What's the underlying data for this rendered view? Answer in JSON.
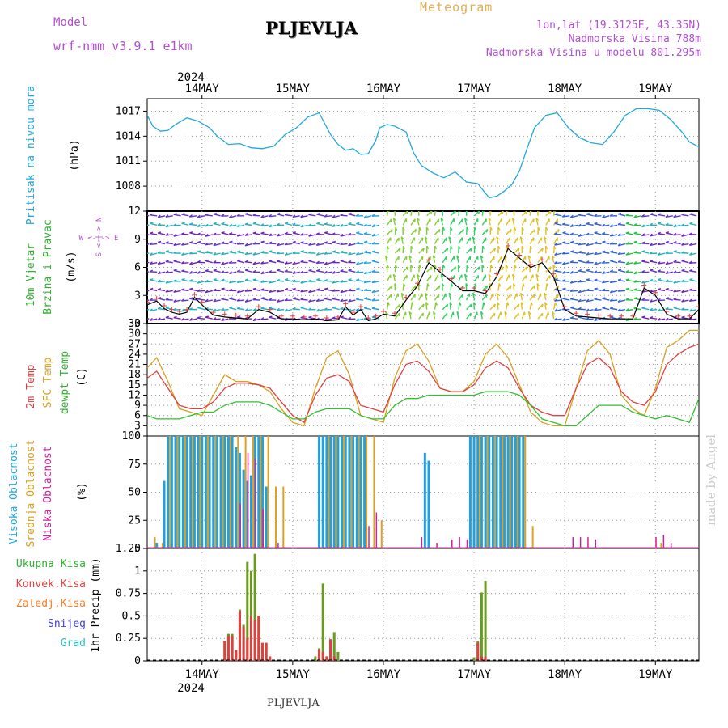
{
  "header": {
    "model_label": "Model",
    "model_name": "wrf-nmm_v3.9.1  e1km",
    "city": "PLJEVLJA",
    "product": "Meteogram",
    "coords": "lon,lat (19.3125E, 43.35N)",
    "elevation": "Nadmorska Visina 788m",
    "model_elevation": "Nadmorska Visina u modelu 801.295m"
  },
  "footer": {
    "city": "PLJEVLJA",
    "watermark": "made by Angel"
  },
  "time_axis": {
    "year": "2024",
    "days": [
      "14MAY",
      "15MAY",
      "16MAY",
      "17MAY",
      "18MAY",
      "19MAY"
    ],
    "day_start_hours": [
      0,
      24,
      48,
      72,
      96,
      120
    ],
    "range_hours": [
      -14.5,
      131.5
    ]
  },
  "panels": {
    "pressure": {
      "title": "Pritisak na nivou mora",
      "unit": "(hPa)",
      "color_title": "#20a8e0"
    },
    "wind": {
      "title1": "10m Vjetar",
      "title2": "Brzina i Pravac",
      "unit": "(m/s)",
      "compass": "W <-|-> E",
      "compass_v": "S <-|-> N"
    },
    "temp": {
      "t2": "2m Temp",
      "sfc": "SFC Temp",
      "dew": "dewpt Temp",
      "unit": "(C)"
    },
    "cloud": {
      "high": "Visoka Oblacnost",
      "mid": "Srednja Oblacnost",
      "low": "Niska Oblacnost",
      "unit": "(%)"
    },
    "precip": {
      "total": "Ukupna Kisa",
      "conv": "Konvek.Kisa",
      "frozen": "Zaledj.Kisa",
      "snow": "Snijeg",
      "hail": "Grad",
      "unit": "1hr Precip (mm)"
    }
  },
  "colors": {
    "pressure": "#20a8e0",
    "t2": "#e04040",
    "sfc": "#d8a020",
    "dew": "#30c030",
    "cloud_high": "#20a0e0",
    "cloud_mid": "#e0a020",
    "cloud_low": "#d020a0",
    "precip_total": "#6a9a20",
    "precip_conv": "#e04040",
    "legend_total": "#30b030",
    "legend_frozen": "#f08030",
    "legend_snow": "#4040e0",
    "legend_hail": "#20c0c0"
  },
  "chart_data": [
    {
      "type": "line",
      "title": "Pritisak na nivou mora",
      "ylabel": "(hPa)",
      "ylim": [
        1005,
        1018.5
      ],
      "yticks": [
        1008,
        1011,
        1014,
        1017
      ],
      "series": [
        {
          "name": "Pritisak na nivou mora",
          "x": [
            -14.5,
            -13,
            -11,
            -9,
            -7,
            -4,
            -1,
            2,
            4,
            7,
            10,
            13,
            16,
            19,
            22,
            25,
            28,
            31,
            34,
            36,
            38,
            40,
            42,
            44,
            46,
            47,
            49,
            51,
            54,
            56,
            58,
            61,
            64,
            67,
            70,
            73,
            76,
            78,
            80,
            82,
            84,
            86,
            88,
            91,
            94,
            97,
            100,
            103,
            106,
            109,
            112,
            115,
            118,
            121,
            124,
            127,
            129,
            131.5
          ],
          "y": [
            1016.5,
            1015.2,
            1014.6,
            1014.7,
            1015.4,
            1016.2,
            1015.8,
            1015.0,
            1014.0,
            1013.0,
            1013.1,
            1012.6,
            1012.5,
            1012.8,
            1014.2,
            1015.0,
            1016.3,
            1016.8,
            1014.2,
            1013.0,
            1012.3,
            1012.5,
            1011.8,
            1011.9,
            1013.5,
            1015.0,
            1015.4,
            1015.2,
            1014.5,
            1012.0,
            1010.5,
            1009.6,
            1009.0,
            1009.7,
            1008.5,
            1008.3,
            1006.6,
            1006.8,
            1007.4,
            1008.2,
            1009.8,
            1012.5,
            1015.0,
            1016.5,
            1016.8,
            1015.0,
            1013.8,
            1013.2,
            1013.0,
            1014.5,
            1016.5,
            1017.3,
            1017.3,
            1017.1,
            1016.0,
            1014.5,
            1013.3,
            1012.7
          ]
        }
      ]
    },
    {
      "type": "line",
      "title": "10m Vjetar Brzina i Pravac",
      "ylabel": "(m/s)",
      "ylim": [
        0,
        12
      ],
      "yticks": [
        0,
        3,
        6,
        9,
        12
      ],
      "series": [
        {
          "name": "10m Vjetar",
          "x": [
            -14.5,
            -12,
            -10,
            -8,
            -6,
            -4,
            -2,
            0,
            3,
            6,
            9,
            12,
            15,
            18,
            21,
            24,
            27,
            30,
            33,
            36,
            38,
            40,
            42,
            44,
            46,
            48,
            51,
            54,
            57,
            60,
            63,
            66,
            69,
            72,
            75,
            78,
            81,
            84,
            87,
            90,
            93,
            96,
            99,
            102,
            105,
            108,
            111,
            114,
            117,
            120,
            123,
            126,
            129,
            131.5
          ],
          "y": [
            2.0,
            2.4,
            1.6,
            1.2,
            1.0,
            1.2,
            2.8,
            2.0,
            0.9,
            0.7,
            0.6,
            0.5,
            1.5,
            1.2,
            0.5,
            0.5,
            0.4,
            0.5,
            0.3,
            0.4,
            1.8,
            0.9,
            1.5,
            0.3,
            0.5,
            1.0,
            0.8,
            2.5,
            4.0,
            6.5,
            5.5,
            4.5,
            3.5,
            3.5,
            3.2,
            5.0,
            8.0,
            7.0,
            6.0,
            6.5,
            5.0,
            1.5,
            0.8,
            0.7,
            0.6,
            0.5,
            0.5,
            0.5,
            3.8,
            3.0,
            1.0,
            0.5,
            0.5,
            1.5
          ]
        }
      ]
    },
    {
      "type": "line",
      "title": "2m Temp / SFC Temp / dewpt Temp",
      "ylabel": "(C)",
      "ylim": [
        0,
        33
      ],
      "yticks": [
        0,
        3,
        6,
        9,
        12,
        15,
        18,
        21,
        24,
        27,
        30,
        33
      ],
      "series": [
        {
          "name": "2m Temp",
          "x": [
            -14.5,
            -12,
            -9,
            -6,
            -3,
            0,
            3,
            6,
            9,
            12,
            15,
            18,
            21,
            24,
            27,
            30,
            33,
            36,
            39,
            42,
            45,
            48,
            51,
            54,
            57,
            60,
            63,
            66,
            69,
            72,
            75,
            78,
            81,
            84,
            87,
            90,
            93,
            96,
            99,
            102,
            105,
            108,
            111,
            114,
            117,
            120,
            123,
            126,
            129,
            131.5
          ],
          "y": [
            17,
            19,
            14,
            9,
            8,
            8,
            10,
            14,
            15.5,
            15.5,
            15,
            14,
            10,
            6,
            4,
            12,
            17,
            18,
            16,
            9,
            8,
            7,
            15,
            21,
            22,
            19,
            14,
            13,
            13,
            15,
            20,
            22,
            20,
            14,
            9,
            7,
            6,
            6,
            14,
            21,
            23,
            20,
            13,
            10,
            9,
            13,
            21,
            24,
            26,
            27
          ]
        },
        {
          "name": "SFC Temp",
          "x": [
            -14.5,
            -12,
            -9,
            -6,
            -3,
            0,
            3,
            6,
            9,
            12,
            15,
            18,
            21,
            24,
            27,
            30,
            33,
            36,
            39,
            42,
            45,
            48,
            51,
            54,
            57,
            60,
            63,
            66,
            69,
            72,
            75,
            78,
            81,
            84,
            87,
            90,
            93,
            96,
            99,
            102,
            105,
            108,
            111,
            114,
            117,
            120,
            123,
            126,
            129,
            131.5
          ],
          "y": [
            20,
            23,
            16,
            8,
            7,
            6,
            12,
            18,
            16,
            16,
            15,
            13,
            8,
            4,
            3,
            14,
            23,
            25,
            18,
            6,
            5,
            4,
            17,
            25,
            27,
            22,
            14,
            13,
            13,
            16,
            24,
            27,
            23,
            15,
            7,
            4,
            3,
            3,
            14,
            25,
            28,
            24,
            12,
            8,
            6,
            14,
            26,
            28,
            31,
            31
          ]
        },
        {
          "name": "dewpt Temp",
          "x": [
            -14.5,
            -12,
            -9,
            -6,
            -3,
            0,
            3,
            6,
            9,
            12,
            15,
            18,
            21,
            24,
            27,
            30,
            33,
            36,
            39,
            42,
            45,
            48,
            51,
            54,
            57,
            60,
            63,
            66,
            69,
            72,
            75,
            78,
            81,
            84,
            87,
            90,
            93,
            96,
            99,
            102,
            105,
            108,
            111,
            114,
            117,
            120,
            123,
            126,
            129,
            131.5
          ],
          "y": [
            6,
            5,
            5,
            5,
            6,
            7,
            7,
            9,
            10,
            10,
            10,
            9,
            7,
            5,
            5,
            7,
            8,
            8,
            8,
            6,
            5,
            5,
            9,
            11,
            11,
            12,
            12,
            12,
            12,
            12,
            13,
            13,
            13,
            12,
            9,
            5,
            4,
            3,
            3,
            6,
            9,
            9,
            9,
            7,
            6,
            5,
            6,
            5,
            4,
            11
          ]
        }
      ]
    },
    {
      "type": "bar",
      "title": "Visoka / Srednja / Niska Oblacnost",
      "ylabel": "(%)",
      "ylim": [
        0,
        100
      ],
      "yticks": [
        0,
        25,
        50,
        75,
        100
      ],
      "series": [
        {
          "name": "Visoka Oblacnost",
          "x": [
            -12,
            -10,
            -9,
            -8,
            -7,
            -6,
            -5,
            -4,
            -3,
            -2,
            -1,
            0,
            1,
            2,
            3,
            4,
            5,
            6,
            7,
            8,
            9,
            10,
            11,
            12,
            13,
            14,
            15,
            16,
            17,
            18,
            31,
            32,
            33,
            34,
            35,
            36,
            37,
            38,
            39,
            40,
            41,
            42,
            43,
            44,
            59,
            60,
            61,
            62,
            63,
            71,
            72,
            73,
            74,
            75,
            76,
            77,
            78,
            79,
            80,
            81,
            82,
            83,
            84,
            85
          ],
          "y": [
            5,
            60,
            100,
            100,
            100,
            100,
            100,
            100,
            100,
            100,
            100,
            100,
            100,
            100,
            100,
            100,
            100,
            100,
            100,
            100,
            90,
            85,
            70,
            60,
            65,
            100,
            100,
            100,
            55,
            0,
            100,
            100,
            100,
            100,
            100,
            100,
            100,
            100,
            100,
            100,
            100,
            100,
            100,
            0,
            85,
            78,
            0,
            0,
            0,
            100,
            100,
            100,
            100,
            100,
            100,
            100,
            100,
            100,
            100,
            100,
            100,
            100,
            100,
            100
          ]
        },
        {
          "name": "Srednja Oblacnost",
          "x": [
            -13,
            -11,
            -9,
            -7,
            -5,
            -3,
            -1,
            1,
            3,
            5,
            7,
            9,
            11,
            13,
            15,
            17,
            19,
            21,
            33,
            35,
            37,
            39,
            41,
            43,
            45,
            47,
            73,
            75,
            77,
            79,
            81,
            83,
            85,
            87,
            121
          ],
          "y": [
            10,
            5,
            100,
            100,
            100,
            100,
            100,
            100,
            100,
            100,
            100,
            100,
            100,
            100,
            100,
            100,
            55,
            55,
            100,
            100,
            100,
            100,
            100,
            100,
            100,
            25,
            100,
            100,
            100,
            100,
            100,
            100,
            100,
            20,
            5
          ]
        },
        {
          "name": "Niska Oblacnost",
          "x": [
            10,
            12,
            14,
            16,
            20,
            44,
            46,
            58,
            62,
            66,
            68,
            70,
            98,
            100,
            102,
            104,
            120,
            122,
            124
          ],
          "y": [
            40,
            85,
            80,
            35,
            5,
            20,
            32,
            10,
            5,
            8,
            10,
            8,
            10,
            10,
            10,
            8,
            10,
            12,
            5
          ]
        }
      ]
    },
    {
      "type": "bar",
      "title": "1hr Precip",
      "ylabel": "1hr Precip (mm)",
      "ylim": [
        0,
        1.25
      ],
      "yticks": [
        0,
        0.25,
        0.5,
        0.75,
        1,
        1.25
      ],
      "series": [
        {
          "name": "Ukupna Kisa",
          "x": [
            6,
            7,
            8,
            9,
            10,
            11,
            12,
            13,
            14,
            15,
            16,
            17,
            30,
            31,
            32,
            33,
            34,
            35,
            36,
            72,
            73,
            74,
            75
          ],
          "y": [
            0.22,
            0.3,
            0.3,
            0.12,
            0.57,
            0.4,
            1.1,
            1.0,
            1.19,
            0.5,
            0.2,
            0.2,
            0.05,
            0.14,
            0.86,
            0.05,
            0.24,
            0.32,
            0.1,
            0.04,
            0.22,
            0.76,
            0.89
          ]
        },
        {
          "name": "Konvek.Kisa",
          "x": [
            6,
            7,
            8,
            9,
            10,
            11,
            12,
            13,
            14,
            15,
            16,
            17,
            18,
            31,
            32,
            33,
            34,
            35,
            73,
            74,
            75
          ],
          "y": [
            0.22,
            0.28,
            0.28,
            0.12,
            0.55,
            0.38,
            0.25,
            0.5,
            0.45,
            0.5,
            0.2,
            0.2,
            0.05,
            0.13,
            0.1,
            0.05,
            0.24,
            0.05,
            0.2,
            0.05,
            0.05
          ]
        }
      ]
    }
  ]
}
